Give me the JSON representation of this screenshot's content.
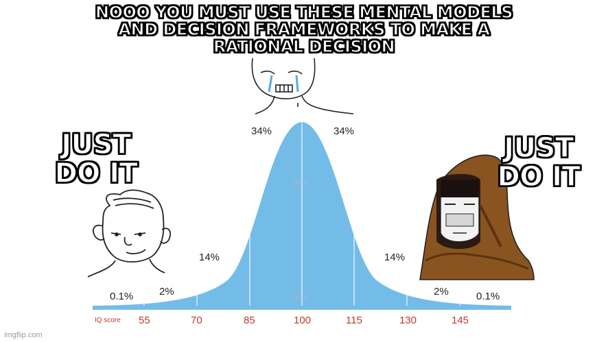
{
  "captions": {
    "top": "NOOO YOU MUST USE THESE MENTAL MODELS AND DECISION FRAMEWORKS TO MAKE A RATIONAL DECISION",
    "left": "JUST DO IT",
    "right": "JUST DO IT"
  },
  "bell_curve": {
    "percent_labels": [
      "0.1%",
      "2%",
      "14%",
      "34%",
      "34%",
      "14%",
      "2%",
      "0.1%"
    ],
    "inner_labels": [
      "68%",
      "95%"
    ],
    "axis_name": "IQ score",
    "ticks": [
      "55",
      "70",
      "85",
      "100",
      "115",
      "130",
      "145"
    ],
    "fill_color": "#74bce8",
    "axis_color": "#c0392b"
  },
  "characters": [
    "left-wojak-simple",
    "center-crying-wojak",
    "right-hooded-wojak"
  ],
  "watermark": "imgflip.com"
}
